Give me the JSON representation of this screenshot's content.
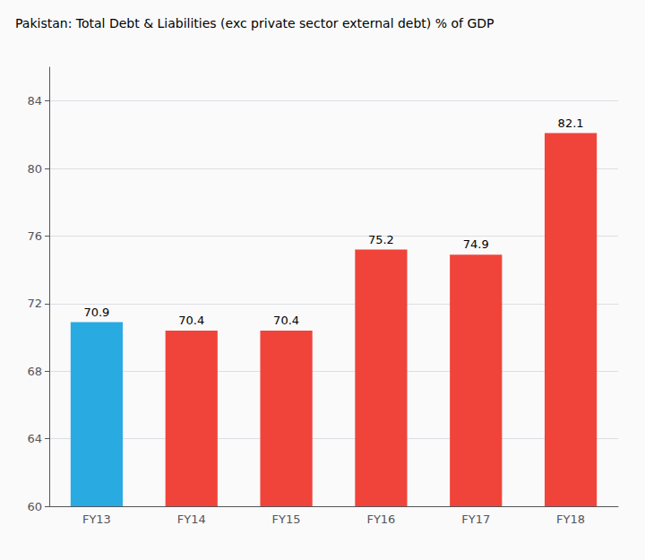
{
  "chart_data": {
    "type": "bar",
    "title": "Pakistan: Total Debt & Liabilities (exc private sector external debt) % of GDP",
    "categories": [
      "FY13",
      "FY14",
      "FY15",
      "FY16",
      "FY17",
      "FY18"
    ],
    "values": [
      70.9,
      70.4,
      70.4,
      75.2,
      74.9,
      82.1
    ],
    "colors": [
      "#29ABE2",
      "#F0443A",
      "#F0443A",
      "#F0443A",
      "#F0443A",
      "#F0443A"
    ],
    "ylim": [
      60,
      86
    ],
    "yticks": [
      60,
      64,
      68,
      72,
      76,
      80,
      84
    ],
    "grid": true,
    "data_labels": true
  }
}
